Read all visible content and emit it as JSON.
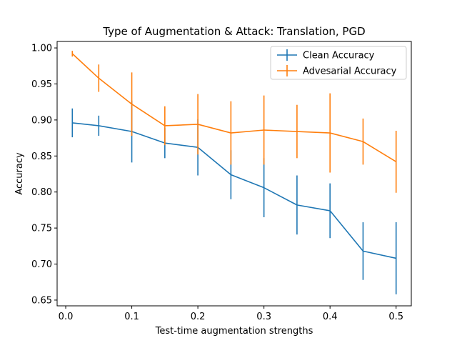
{
  "chart_data": {
    "type": "line",
    "title": "Type of Augmentation & Attack: Translation, PGD",
    "xlabel": "Test-time augmentation strengths",
    "ylabel": "Accuracy",
    "xlim": [
      -0.013,
      0.523
    ],
    "ylim": [
      0.642,
      1.009
    ],
    "xticks": [
      0,
      0.1,
      0.2,
      0.3,
      0.4,
      0.5
    ],
    "xtick_labels": [
      "0.0",
      "0.1",
      "0.2",
      "0.3",
      "0.4",
      "0.5"
    ],
    "yticks": [
      0.65,
      0.7,
      0.75,
      0.8,
      0.85,
      0.9,
      0.95,
      1.0
    ],
    "ytick_labels": [
      "0.65",
      "0.70",
      "0.75",
      "0.80",
      "0.85",
      "0.90",
      "0.95",
      "1.00"
    ],
    "grid": false,
    "legend_position": "top-right",
    "x": [
      0.01,
      0.05,
      0.1,
      0.15,
      0.2,
      0.25,
      0.3,
      0.35,
      0.4,
      0.45,
      0.5
    ],
    "series": [
      {
        "name": "Clean Accuracy",
        "color": "#1f77b4",
        "values": [
          0.896,
          0.892,
          0.884,
          0.868,
          0.862,
          0.824,
          0.806,
          0.782,
          0.774,
          0.718,
          0.708
        ],
        "errors": [
          0.02,
          0.014,
          0.043,
          0.021,
          0.039,
          0.034,
          0.041,
          0.041,
          0.038,
          0.04,
          0.05
        ]
      },
      {
        "name": "Advesarial Accuracy",
        "color": "#ff7f0e",
        "values": [
          0.992,
          0.958,
          0.922,
          0.892,
          0.894,
          0.882,
          0.886,
          0.884,
          0.882,
          0.87,
          0.842
        ],
        "errors": [
          0.004,
          0.019,
          0.044,
          0.027,
          0.042,
          0.044,
          0.048,
          0.037,
          0.055,
          0.032,
          0.043
        ]
      }
    ]
  }
}
